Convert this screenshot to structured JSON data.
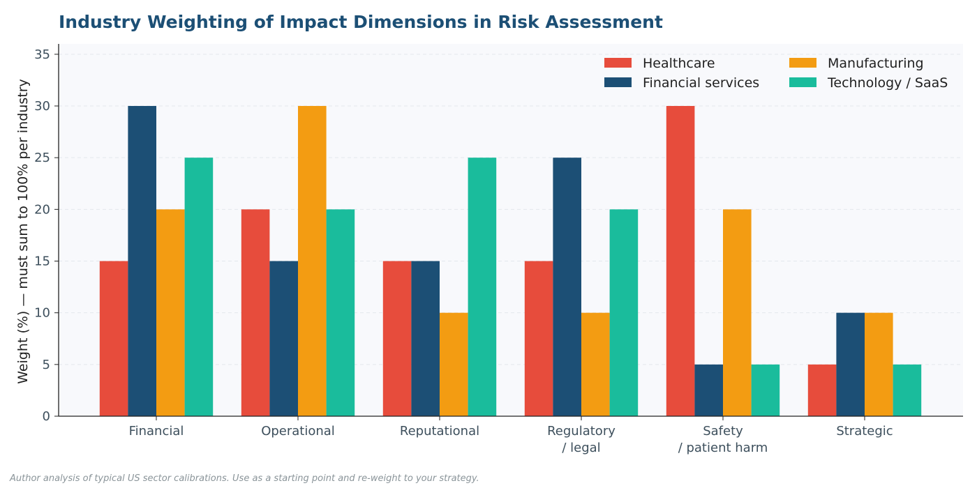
{
  "chart_data": {
    "type": "bar",
    "title": "Industry Weighting of Impact Dimensions in Risk Assessment",
    "ylabel": "Weight (%) — must sum to 100% per industry",
    "xlabel": "",
    "categories": [
      [
        "Financial"
      ],
      [
        "Operational"
      ],
      [
        "Reputational"
      ],
      [
        "Regulatory",
        "/ legal"
      ],
      [
        "Safety",
        "/ patient harm"
      ],
      [
        "Strategic"
      ]
    ],
    "series": [
      {
        "name": "Healthcare",
        "color": "#e74c3c",
        "values": [
          15,
          20,
          15,
          15,
          30,
          5
        ]
      },
      {
        "name": "Financial services",
        "color": "#1c4f75",
        "values": [
          30,
          15,
          15,
          25,
          5,
          10
        ]
      },
      {
        "name": "Manufacturing",
        "color": "#f39c12",
        "values": [
          20,
          30,
          10,
          10,
          20,
          10
        ]
      },
      {
        "name": "Technology / SaaS",
        "color": "#1abc9c",
        "values": [
          25,
          20,
          25,
          20,
          5,
          5
        ]
      }
    ],
    "yticks": [
      0,
      5,
      10,
      15,
      20,
      25,
      30,
      35
    ],
    "ylim": [
      0,
      36
    ],
    "grid": "horizontal dashed",
    "legend_position": "top-right"
  },
  "footnote": "Author analysis of typical US sector calibrations. Use as a starting point and re-weight to your strategy."
}
